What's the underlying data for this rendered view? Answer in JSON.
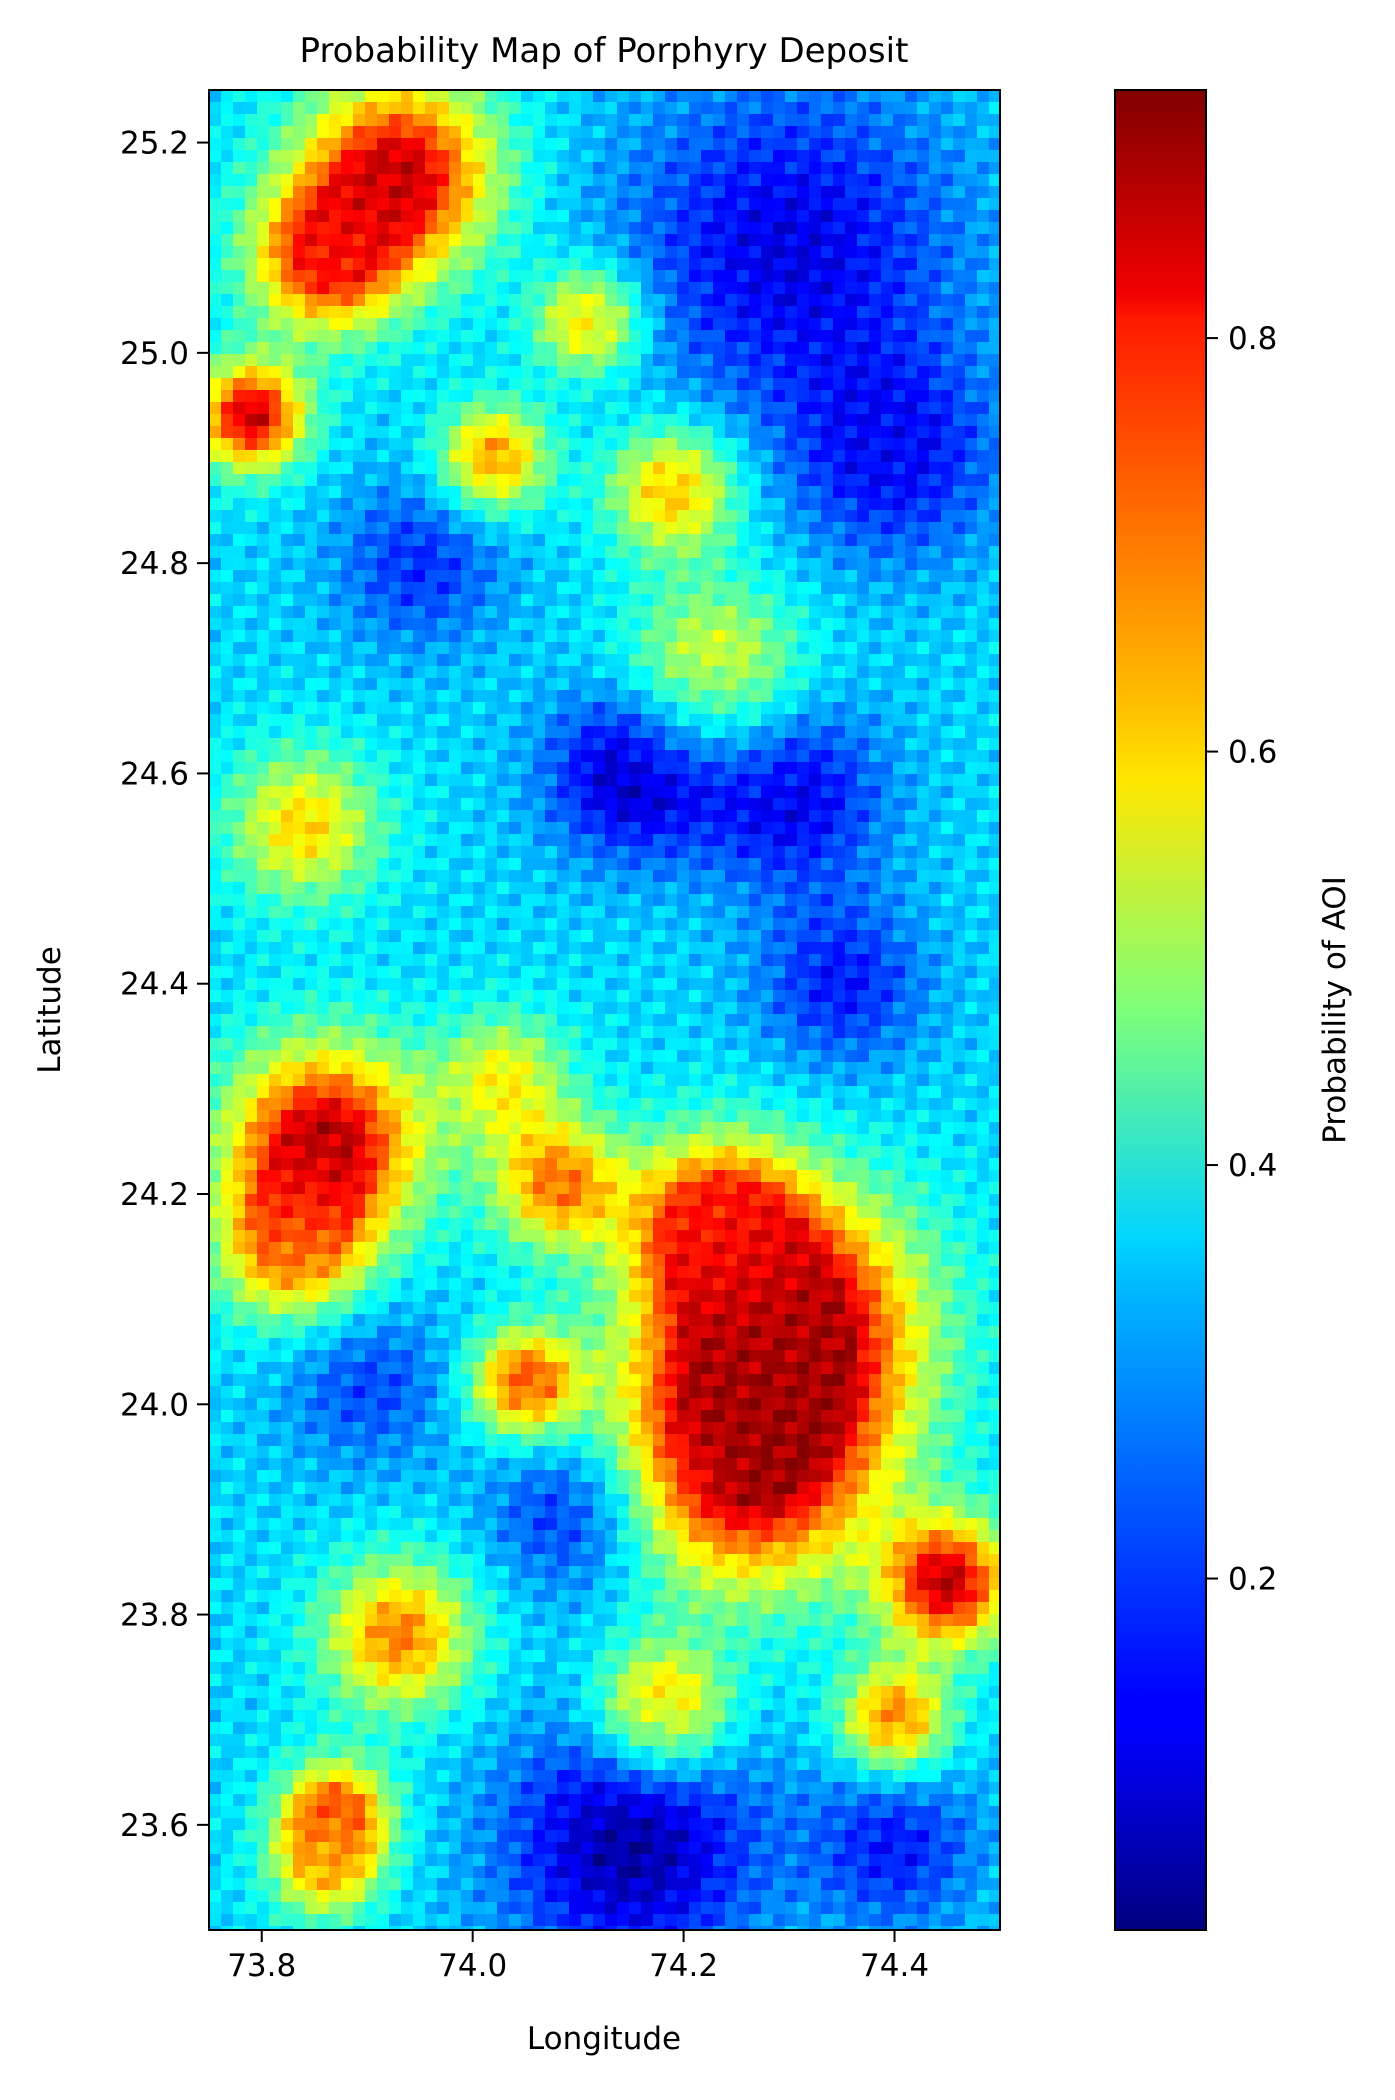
{
  "chart_data": {
    "type": "heatmap",
    "title": "Probability Map of Porphyry Deposit",
    "xlabel": "Longitude",
    "ylabel": "Latitude",
    "xlim": [
      73.75,
      74.5
    ],
    "ylim": [
      23.5,
      25.25
    ],
    "xticks": [
      73.8,
      74.0,
      74.2,
      74.4
    ],
    "xtick_labels": [
      "73.8",
      "74.0",
      "74.2",
      "74.4"
    ],
    "yticks": [
      23.6,
      23.8,
      24.0,
      24.2,
      24.4,
      24.6,
      24.8,
      25.0,
      25.2
    ],
    "ytick_labels": [
      "23.6",
      "23.8",
      "24.0",
      "24.2",
      "24.4",
      "24.6",
      "24.8",
      "25.0",
      "25.2"
    ],
    "colormap": "jet",
    "colorbar": {
      "label": "Probability of AOI",
      "range": [
        0.03,
        0.92
      ],
      "ticks": [
        0.2,
        0.4,
        0.6,
        0.8
      ],
      "tick_labels": [
        "0.2",
        "0.4",
        "0.6",
        "0.8"
      ]
    },
    "grid": false,
    "hotspots": [
      {
        "lon": 73.93,
        "lat": 25.17,
        "value": 0.86,
        "radius": 0.09
      },
      {
        "lon": 73.86,
        "lat": 25.09,
        "value": 0.78,
        "radius": 0.07
      },
      {
        "lon": 73.79,
        "lat": 24.94,
        "value": 0.86,
        "radius": 0.05
      },
      {
        "lon": 74.11,
        "lat": 25.03,
        "value": 0.66,
        "radius": 0.05
      },
      {
        "lon": 74.02,
        "lat": 24.9,
        "value": 0.7,
        "radius": 0.05
      },
      {
        "lon": 74.19,
        "lat": 24.87,
        "value": 0.66,
        "radius": 0.06
      },
      {
        "lon": 74.23,
        "lat": 24.7,
        "value": 0.58,
        "radius": 0.08
      },
      {
        "lon": 73.84,
        "lat": 24.55,
        "value": 0.62,
        "radius": 0.07
      },
      {
        "lon": 73.86,
        "lat": 24.25,
        "value": 0.88,
        "radius": 0.09
      },
      {
        "lon": 73.83,
        "lat": 24.15,
        "value": 0.7,
        "radius": 0.07
      },
      {
        "lon": 74.08,
        "lat": 24.21,
        "value": 0.7,
        "radius": 0.06
      },
      {
        "lon": 74.03,
        "lat": 24.31,
        "value": 0.58,
        "radius": 0.06
      },
      {
        "lon": 74.3,
        "lat": 24.08,
        "value": 0.88,
        "radius": 0.12
      },
      {
        "lon": 74.26,
        "lat": 23.95,
        "value": 0.9,
        "radius": 0.12
      },
      {
        "lon": 74.23,
        "lat": 24.17,
        "value": 0.76,
        "radius": 0.08
      },
      {
        "lon": 74.05,
        "lat": 24.02,
        "value": 0.76,
        "radius": 0.05
      },
      {
        "lon": 74.45,
        "lat": 23.83,
        "value": 0.86,
        "radius": 0.06
      },
      {
        "lon": 74.4,
        "lat": 23.7,
        "value": 0.72,
        "radius": 0.05
      },
      {
        "lon": 73.93,
        "lat": 23.78,
        "value": 0.7,
        "radius": 0.07
      },
      {
        "lon": 74.18,
        "lat": 23.71,
        "value": 0.7,
        "radius": 0.06
      },
      {
        "lon": 73.87,
        "lat": 23.61,
        "value": 0.76,
        "radius": 0.05
      },
      {
        "lon": 73.86,
        "lat": 23.56,
        "value": 0.62,
        "radius": 0.05
      }
    ],
    "coldspots": [
      {
        "lon": 74.3,
        "lat": 25.1,
        "value": 0.12,
        "radius": 0.16
      },
      {
        "lon": 74.4,
        "lat": 24.9,
        "value": 0.15,
        "radius": 0.1
      },
      {
        "lon": 74.15,
        "lat": 24.6,
        "value": 0.08,
        "radius": 0.08
      },
      {
        "lon": 74.3,
        "lat": 24.58,
        "value": 0.12,
        "radius": 0.09
      },
      {
        "lon": 74.35,
        "lat": 24.4,
        "value": 0.16,
        "radius": 0.08
      },
      {
        "lon": 74.1,
        "lat": 23.9,
        "value": 0.14,
        "radius": 0.08
      },
      {
        "lon": 74.15,
        "lat": 23.58,
        "value": 0.06,
        "radius": 0.12
      },
      {
        "lon": 74.4,
        "lat": 23.58,
        "value": 0.16,
        "radius": 0.08
      },
      {
        "lon": 73.95,
        "lat": 24.8,
        "value": 0.18,
        "radius": 0.08
      },
      {
        "lon": 73.9,
        "lat": 24.02,
        "value": 0.2,
        "radius": 0.08
      }
    ],
    "base_value": 0.33
  }
}
